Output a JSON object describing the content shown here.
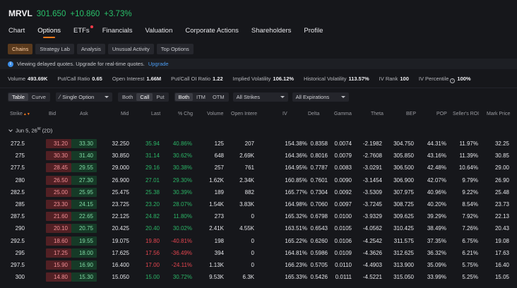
{
  "quote": {
    "symbol": "MRVL",
    "price": "301.650",
    "change": "+10.860",
    "change_pct": "+3.73%"
  },
  "nav_tabs": [
    "Chart",
    "Options",
    "ETFs",
    "Financials",
    "Valuation",
    "Corporate Actions",
    "Shareholders",
    "Profile"
  ],
  "sub_tabs": [
    "Chains",
    "Strategy Lab",
    "Analysis",
    "Unusual Activity",
    "Top Options"
  ],
  "notice": {
    "text": "Viewing delayed quotes. Upgrade for real-time quotes.",
    "link": "Upgrade"
  },
  "stats": [
    {
      "label": "Volume",
      "value": "493.69K"
    },
    {
      "label": "Put/Call Ratio",
      "value": "0.65"
    },
    {
      "label": "Open Interest",
      "value": "1.66M"
    },
    {
      "label": "Put/Call OI Ratio",
      "value": "1.22"
    },
    {
      "label": "Implied Volatility",
      "value": "106.12%"
    },
    {
      "label": "Historical Volatility",
      "value": "113.57%"
    },
    {
      "label": "IV Rank",
      "value": "100"
    },
    {
      "label": "IV Percentile",
      "value": "100%"
    }
  ],
  "filters": {
    "view": [
      "Table",
      "Curve"
    ],
    "strategy": "Single Option",
    "type": [
      "Both",
      "Call",
      "Put"
    ],
    "moneyness": [
      "Both",
      "ITM",
      "OTM"
    ],
    "strikes": "All Strikes",
    "expirations": "All Expirations"
  },
  "columns": [
    "Strike",
    "Bid",
    "Ask",
    "Mid",
    "Last",
    "% Chg",
    "Volume",
    "Open Intere",
    "IV",
    "Delta",
    "Gamma",
    "Theta",
    "BEP",
    "POP",
    "Seller's ROI",
    "Mark Price"
  ],
  "expiry": {
    "label": "Jun 5, 26",
    "sup": "W",
    "days": "(2D)"
  },
  "rows": [
    [
      "272.5",
      "31.20",
      "33.30",
      "32.250",
      "35.94",
      "40.86%",
      "125",
      "207",
      "154.38%",
      "0.8358",
      "0.0074",
      "-2.1982",
      "304.750",
      "44.31%",
      "11.97%",
      "32.25"
    ],
    [
      "275",
      "30.30",
      "31.40",
      "30.850",
      "31.14",
      "30.62%",
      "648",
      "2.69K",
      "164.36%",
      "0.8016",
      "0.0079",
      "-2.7608",
      "305.850",
      "43.16%",
      "11.39%",
      "30.85"
    ],
    [
      "277.5",
      "28.45",
      "29.55",
      "29.000",
      "29.16",
      "30.38%",
      "257",
      "761",
      "164.95%",
      "0.7787",
      "0.0083",
      "-3.0291",
      "306.500",
      "42.48%",
      "10.64%",
      "29.00"
    ],
    [
      "280",
      "26.50",
      "27.30",
      "26.900",
      "27.01",
      "29.30%",
      "1.62K",
      "2.34K",
      "160.85%",
      "0.7601",
      "0.0090",
      "-3.1454",
      "306.900",
      "42.07%",
      "9.79%",
      "26.90"
    ],
    [
      "282.5",
      "25.00",
      "25.95",
      "25.475",
      "25.38",
      "30.39%",
      "189",
      "882",
      "165.77%",
      "0.7304",
      "0.0092",
      "-3.5309",
      "307.975",
      "40.96%",
      "9.22%",
      "25.48"
    ],
    [
      "285",
      "23.30",
      "24.15",
      "23.725",
      "23.20",
      "28.07%",
      "1.54K",
      "3.83K",
      "164.98%",
      "0.7060",
      "0.0097",
      "-3.7245",
      "308.725",
      "40.20%",
      "8.54%",
      "23.73"
    ],
    [
      "287.5",
      "21.60",
      "22.65",
      "22.125",
      "24.82",
      "11.80%",
      "273",
      "0",
      "165.32%",
      "0.6798",
      "0.0100",
      "-3.9329",
      "309.625",
      "39.29%",
      "7.92%",
      "22.13"
    ],
    [
      "290",
      "20.10",
      "20.75",
      "20.425",
      "20.40",
      "30.02%",
      "2.41K",
      "4.55K",
      "163.51%",
      "0.6543",
      "0.0105",
      "-4.0562",
      "310.425",
      "38.49%",
      "7.26%",
      "20.43"
    ],
    [
      "292.5",
      "18.60",
      "19.55",
      "19.075",
      "19.80",
      "-40.81%",
      "198",
      "0",
      "165.22%",
      "0.6260",
      "0.0106",
      "-4.2542",
      "311.575",
      "37.35%",
      "6.75%",
      "19.08"
    ],
    [
      "295",
      "17.25",
      "18.00",
      "17.625",
      "17.56",
      "-36.49%",
      "394",
      "0",
      "164.81%",
      "0.5986",
      "0.0109",
      "-4.3626",
      "312.625",
      "36.32%",
      "6.21%",
      "17.63"
    ],
    [
      "297.5",
      "15.90",
      "16.90",
      "16.400",
      "17.00",
      "-24.11%",
      "1.13K",
      "0",
      "166.23%",
      "0.5705",
      "0.0110",
      "-4.4903",
      "313.900",
      "35.09%",
      "5.75%",
      "16.40"
    ],
    [
      "300",
      "14.80",
      "15.30",
      "15.050",
      "15.00",
      "30.72%",
      "9.53K",
      "6.3K",
      "165.33%",
      "0.5426",
      "0.0111",
      "-4.5221",
      "315.050",
      "33.99%",
      "5.25%",
      "15.05"
    ]
  ],
  "colors": {
    "positive": "#2bb566",
    "negative": "#e5454f",
    "accent": "#ff7a1a",
    "bid_bg": "#522024",
    "ask_bg": "#163a27"
  }
}
